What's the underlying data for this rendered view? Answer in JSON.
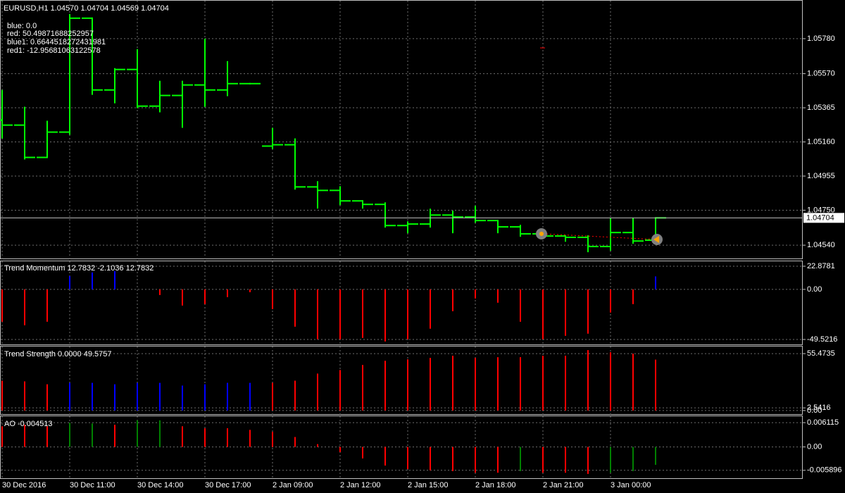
{
  "chart_data": [
    {
      "type": "ohlc",
      "title": "EURUSD,H1  1.04570 1.04704 1.04569 1.04704",
      "annotations": [
        "blue: 0.0",
        "red: 50.49871688252957",
        "blue1: 0.6644518272431981",
        "red1: -12.95681063122578"
      ],
      "categories": [
        "30 Dec 2016",
        null,
        null,
        "30 Dec 11:00",
        null,
        null,
        "30 Dec 14:00",
        null,
        null,
        "30 Dec 17:00",
        null,
        null,
        "2 Jan 09:00",
        null,
        null,
        "2 Jan 12:00",
        null,
        null,
        "2 Jan 15:00",
        null,
        null,
        "2 Jan 18:00",
        null,
        null,
        "2 Jan 21:00",
        null,
        null,
        "3 Jan 00:00",
        null,
        null
      ],
      "open": [
        1.05291,
        1.05261,
        1.05067,
        1.05219,
        1.05903,
        1.05472,
        1.05595,
        1.05375,
        1.05439,
        1.05502,
        1.05472,
        1.0551,
        1.05135,
        1.05143,
        1.0489,
        1.04869,
        1.04806,
        1.04785,
        1.04658,
        1.04667,
        1.04721,
        1.04709,
        1.04688,
        1.0465,
        1.04608,
        1.04595,
        1.04587,
        1.04532,
        1.04616,
        1.0457
      ],
      "high": [
        1.05468,
        1.05367,
        1.05283,
        1.05924,
        1.05903,
        1.05599,
        1.05713,
        1.05523,
        1.05523,
        1.05776,
        1.05641,
        1.0551,
        1.0524,
        1.05177,
        1.0492,
        1.0489,
        1.04806,
        1.04793,
        1.04679,
        1.04755,
        1.04743,
        1.04772,
        1.04688,
        1.04658,
        1.04625,
        1.04595,
        1.04595,
        1.047,
        1.047,
        1.04704
      ],
      "low": [
        1.05185,
        1.05059,
        1.05067,
        1.05207,
        1.05447,
        1.05396,
        1.05367,
        1.05342,
        1.05249,
        1.05375,
        1.05439,
        1.0551,
        1.05122,
        1.04878,
        1.04764,
        1.04785,
        1.04764,
        1.0465,
        1.04616,
        1.0465,
        1.04616,
        1.04679,
        1.04616,
        1.04595,
        1.04582,
        1.04565,
        1.04502,
        1.04511,
        1.04553,
        1.04569
      ],
      "close": [
        1.05261,
        1.05067,
        1.05219,
        1.05903,
        1.05472,
        1.05595,
        1.05375,
        1.05439,
        1.05502,
        1.05472,
        1.0551,
        1.0551,
        1.05143,
        1.0489,
        1.04869,
        1.04806,
        1.04785,
        1.04658,
        1.04667,
        1.04721,
        1.04709,
        1.04688,
        1.0465,
        1.04608,
        1.04595,
        1.04587,
        1.04532,
        1.04616,
        1.04565,
        1.04704
      ],
      "color": "#00ff00",
      "last_price": 1.04704,
      "ylim": [
        1.04456,
        1.06008
      ],
      "yticks": [
        {
          "value": 1.0578,
          "label": "1.05780"
        },
        {
          "value": 1.0557,
          "label": "1.05570"
        },
        1.05365,
        {
          "value": 1.0516,
          "label": "1.05160"
        },
        1.04955,
        {
          "value": 1.0475,
          "label": "1.04750"
        },
        {
          "value": 1.0454,
          "label": "1.04540"
        }
      ],
      "grid": true
    },
    {
      "type": "bar",
      "title": "Trend Momentum 12.7832 -2.1036 12.7832",
      "series": [
        {
          "color": "#ff0000",
          "values": [
            -32.0,
            -35.5,
            -32.0,
            null,
            null,
            null,
            null,
            -5.6,
            -16.0,
            -14.6,
            -7.7,
            -2.8,
            -19.5,
            -36.9,
            -49.4,
            -49.4,
            -48.0,
            -51.5,
            -49.4,
            -38.9,
            -21.6,
            -9.0,
            -13.2,
            -32.0,
            -49.4,
            -45.9,
            -43.8,
            -22.9,
            -14.6,
            null
          ]
        },
        {
          "color": "#0000ff",
          "values": [
            null,
            null,
            null,
            13.2,
            16.7,
            18.1,
            null,
            null,
            null,
            null,
            null,
            null,
            null,
            null,
            null,
            null,
            null,
            null,
            null,
            null,
            null,
            null,
            null,
            null,
            null,
            null,
            null,
            null,
            null,
            12.8
          ]
        }
      ],
      "ylim": [
        -55.09,
        27.75
      ],
      "yticks": [
        22.8781,
        {
          "value": 0,
          "label": "0.00"
        },
        -49.5216
      ],
      "grid": true
    },
    {
      "type": "bar",
      "title": "Trend Strength 0.0000 49.5757",
      "series": [
        {
          "color": "#ff0000",
          "values": [
            29.1,
            28.4,
            25.6,
            null,
            null,
            null,
            null,
            null,
            null,
            null,
            null,
            null,
            27.0,
            29.1,
            36.0,
            39.5,
            44.4,
            48.5,
            49.9,
            51.3,
            53.4,
            51.3,
            52.0,
            52.0,
            53.4,
            53.4,
            58.9,
            56.8,
            55.4,
            49.6
          ]
        },
        {
          "color": "#0000ff",
          "values": [
            null,
            null,
            null,
            27.0,
            27.0,
            25.6,
            27.0,
            27.0,
            24.3,
            25.6,
            27.0,
            27.0,
            null,
            null,
            null,
            null,
            null,
            null,
            null,
            null,
            null,
            null,
            null,
            null,
            null,
            null,
            null,
            null,
            null,
            null
          ]
        }
      ],
      "ylim": [
        -4.2,
        62.4
      ],
      "yticks": [
        55.4735,
        2.5416,
        {
          "value": 0,
          "label": "0.00"
        }
      ],
      "grid": true
    },
    {
      "type": "bar",
      "title": "AO -0.004513",
      "series": [
        {
          "color": "#ff0000",
          "values": [
            0.0052,
            0.0056,
            0.0052,
            null,
            null,
            0.0056,
            null,
            null,
            0.0052,
            0.0047,
            0.0047,
            0.0043,
            0.0038,
            0.0025,
            0.0007,
            -0.0013,
            -0.0029,
            -0.0047,
            -0.0056,
            -0.0059,
            -0.0061,
            -0.0065,
            -0.0065,
            null,
            -0.0065,
            -0.0065,
            -0.0068,
            null,
            null,
            null
          ]
        },
        {
          "color": "#008000",
          "values": [
            null,
            null,
            null,
            0.0061,
            0.0059,
            null,
            0.0067,
            0.0067,
            null,
            null,
            null,
            null,
            null,
            null,
            null,
            null,
            null,
            null,
            null,
            null,
            null,
            null,
            null,
            -0.0061,
            null,
            null,
            null,
            -0.0065,
            -0.0061,
            -0.004513
          ]
        }
      ],
      "ylim": [
        -0.00806,
        0.00773
      ],
      "yticks": [
        0.006115,
        {
          "value": 0,
          "label": "0.00"
        },
        -0.005896
      ],
      "grid": true
    }
  ]
}
